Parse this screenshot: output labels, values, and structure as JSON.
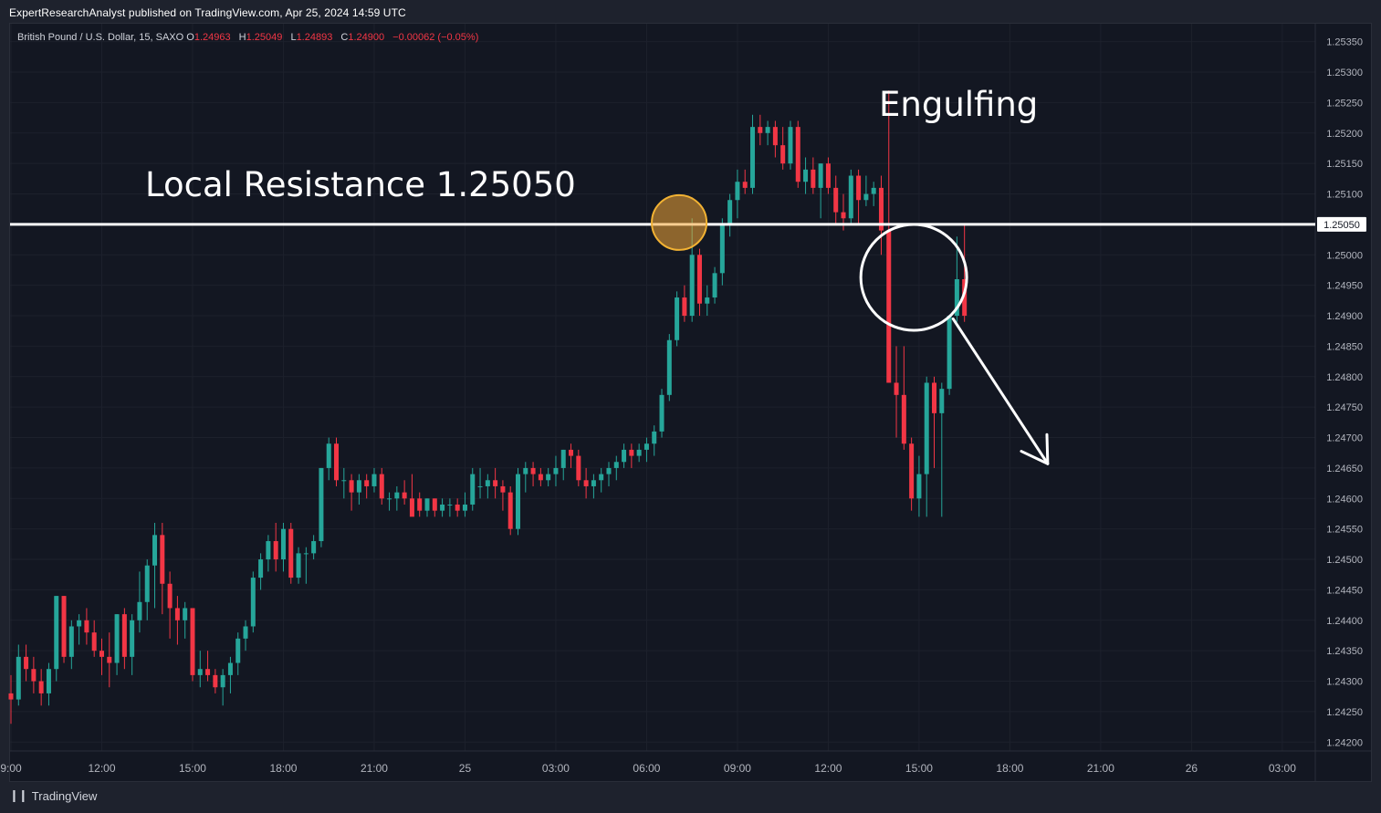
{
  "publisher_line": "ExpertResearchAnalyst published on TradingView.com, Apr 25, 2024 14:59 UTC",
  "legend": {
    "symbol": "British Pound / U.S. Dollar, 15, SAXO",
    "o_label": "O",
    "o": "1.24963",
    "h_label": "H",
    "h": "1.25049",
    "l_label": "L",
    "l": "1.24893",
    "c_label": "C",
    "c": "1.24900",
    "change": "−0.00062 (−0.05%)"
  },
  "footer": {
    "logo": "❙❙",
    "brand": "TradingView"
  },
  "colors": {
    "up": "#26a69a",
    "down": "#f23645",
    "background": "#131722",
    "grid": "#1f2330",
    "text": "#d1d4dc"
  },
  "chart_data": {
    "type": "candlestick",
    "title": "",
    "ylim": [
      1.2418,
      1.2537
    ],
    "y_ticks": [
      "1.25350",
      "1.25300",
      "1.25250",
      "1.25200",
      "1.25150",
      "1.25100",
      "1.25050",
      "1.25000",
      "1.24950",
      "1.24900",
      "1.24850",
      "1.24800",
      "1.24750",
      "1.24700",
      "1.24650",
      "1.24600",
      "1.24550",
      "1.24500",
      "1.24450",
      "1.24400",
      "1.24350",
      "1.24300",
      "1.24250",
      "1.24200"
    ],
    "x_ticks": [
      "9:00",
      "12:00",
      "15:00",
      "18:00",
      "21:00",
      "25",
      "03:00",
      "06:00",
      "09:00",
      "12:00",
      "15:00",
      "18:00",
      "21:00",
      "26",
      "03:00"
    ],
    "x_tick_bars": [
      0,
      12,
      24,
      36,
      48,
      60,
      72,
      84,
      96,
      108,
      120,
      132,
      144,
      156,
      168
    ],
    "resistance": {
      "value": 1.2505,
      "label": "1.25050"
    },
    "annotations": [
      {
        "text": "Local Resistance 1.25050"
      },
      {
        "text": "Engulfing"
      }
    ],
    "marked_circles": [
      {
        "bar": 88.3,
        "price": 1.25053,
        "style": "orange"
      },
      {
        "bar": 119.3,
        "price": 1.24963,
        "style": "white"
      }
    ],
    "arrow": {
      "from": {
        "bar": 124.5,
        "price": 1.24895
      },
      "to": {
        "bar": 137,
        "price": 1.24657
      }
    },
    "candles": [
      {
        "o": 1.2428,
        "h": 1.2431,
        "l": 1.2423,
        "c": 1.2427
      },
      {
        "o": 1.2427,
        "h": 1.2436,
        "l": 1.2426,
        "c": 1.2434
      },
      {
        "o": 1.2434,
        "h": 1.2436,
        "l": 1.243,
        "c": 1.2432
      },
      {
        "o": 1.2432,
        "h": 1.2434,
        "l": 1.2428,
        "c": 1.243
      },
      {
        "o": 1.243,
        "h": 1.2432,
        "l": 1.2426,
        "c": 1.2428
      },
      {
        "o": 1.2428,
        "h": 1.2433,
        "l": 1.2426,
        "c": 1.2432
      },
      {
        "o": 1.2432,
        "h": 1.2444,
        "l": 1.243,
        "c": 1.2444
      },
      {
        "o": 1.2444,
        "h": 1.2444,
        "l": 1.2433,
        "c": 1.2434
      },
      {
        "o": 1.2434,
        "h": 1.244,
        "l": 1.2432,
        "c": 1.2439
      },
      {
        "o": 1.2439,
        "h": 1.2441,
        "l": 1.2436,
        "c": 1.244
      },
      {
        "o": 1.244,
        "h": 1.2442,
        "l": 1.2436,
        "c": 1.2438
      },
      {
        "o": 1.2438,
        "h": 1.244,
        "l": 1.2434,
        "c": 1.2435
      },
      {
        "o": 1.2435,
        "h": 1.2437,
        "l": 1.2431,
        "c": 1.2434
      },
      {
        "o": 1.2434,
        "h": 1.2438,
        "l": 1.2429,
        "c": 1.2433
      },
      {
        "o": 1.2433,
        "h": 1.2441,
        "l": 1.2431,
        "c": 1.2441
      },
      {
        "o": 1.2441,
        "h": 1.2442,
        "l": 1.2432,
        "c": 1.2434
      },
      {
        "o": 1.2434,
        "h": 1.2441,
        "l": 1.2431,
        "c": 1.244
      },
      {
        "o": 1.244,
        "h": 1.2448,
        "l": 1.2438,
        "c": 1.2443
      },
      {
        "o": 1.2443,
        "h": 1.245,
        "l": 1.244,
        "c": 1.2449
      },
      {
        "o": 1.2449,
        "h": 1.2456,
        "l": 1.2442,
        "c": 1.2454
      },
      {
        "o": 1.2454,
        "h": 1.2456,
        "l": 1.2441,
        "c": 1.2446
      },
      {
        "o": 1.2446,
        "h": 1.2448,
        "l": 1.2437,
        "c": 1.2442
      },
      {
        "o": 1.2442,
        "h": 1.2444,
        "l": 1.2436,
        "c": 1.244
      },
      {
        "o": 1.244,
        "h": 1.2443,
        "l": 1.2437,
        "c": 1.2442
      },
      {
        "o": 1.2442,
        "h": 1.2442,
        "l": 1.243,
        "c": 1.2431
      },
      {
        "o": 1.2431,
        "h": 1.2435,
        "l": 1.2429,
        "c": 1.2432
      },
      {
        "o": 1.2432,
        "h": 1.2435,
        "l": 1.243,
        "c": 1.2431
      },
      {
        "o": 1.2431,
        "h": 1.2432,
        "l": 1.2428,
        "c": 1.2429
      },
      {
        "o": 1.2429,
        "h": 1.2432,
        "l": 1.2426,
        "c": 1.2431
      },
      {
        "o": 1.2431,
        "h": 1.2434,
        "l": 1.2428,
        "c": 1.2433
      },
      {
        "o": 1.2433,
        "h": 1.2438,
        "l": 1.2431,
        "c": 1.2437
      },
      {
        "o": 1.2437,
        "h": 1.244,
        "l": 1.2435,
        "c": 1.2439
      },
      {
        "o": 1.2439,
        "h": 1.2448,
        "l": 1.2438,
        "c": 1.2447
      },
      {
        "o": 1.2447,
        "h": 1.2451,
        "l": 1.2445,
        "c": 1.245
      },
      {
        "o": 1.245,
        "h": 1.2454,
        "l": 1.2448,
        "c": 1.2453
      },
      {
        "o": 1.2453,
        "h": 1.2456,
        "l": 1.2448,
        "c": 1.245
      },
      {
        "o": 1.245,
        "h": 1.2456,
        "l": 1.2448,
        "c": 1.2455
      },
      {
        "o": 1.2455,
        "h": 1.2456,
        "l": 1.2446,
        "c": 1.2447
      },
      {
        "o": 1.2447,
        "h": 1.2452,
        "l": 1.2446,
        "c": 1.2451
      },
      {
        "o": 1.2451,
        "h": 1.2452,
        "l": 1.2446,
        "c": 1.2451
      },
      {
        "o": 1.2451,
        "h": 1.2454,
        "l": 1.245,
        "c": 1.2453
      },
      {
        "o": 1.2453,
        "h": 1.2465,
        "l": 1.2452,
        "c": 1.2465
      },
      {
        "o": 1.2465,
        "h": 1.247,
        "l": 1.2463,
        "c": 1.2469
      },
      {
        "o": 1.2469,
        "h": 1.247,
        "l": 1.2462,
        "c": 1.2463
      },
      {
        "o": 1.2463,
        "h": 1.2465,
        "l": 1.246,
        "c": 1.2463
      },
      {
        "o": 1.2463,
        "h": 1.2464,
        "l": 1.2458,
        "c": 1.2461
      },
      {
        "o": 1.2461,
        "h": 1.2464,
        "l": 1.2459,
        "c": 1.2463
      },
      {
        "o": 1.2463,
        "h": 1.2464,
        "l": 1.246,
        "c": 1.2462
      },
      {
        "o": 1.2462,
        "h": 1.2465,
        "l": 1.2461,
        "c": 1.2464
      },
      {
        "o": 1.2464,
        "h": 1.2465,
        "l": 1.2459,
        "c": 1.246
      },
      {
        "o": 1.246,
        "h": 1.2461,
        "l": 1.2458,
        "c": 1.246
      },
      {
        "o": 1.246,
        "h": 1.2462,
        "l": 1.2458,
        "c": 1.2461
      },
      {
        "o": 1.2461,
        "h": 1.2463,
        "l": 1.2459,
        "c": 1.246
      },
      {
        "o": 1.246,
        "h": 1.2464,
        "l": 1.2458,
        "c": 1.2457
      },
      {
        "o": 1.246,
        "h": 1.2461,
        "l": 1.2457,
        "c": 1.2458
      },
      {
        "o": 1.2458,
        "h": 1.246,
        "l": 1.2457,
        "c": 1.246
      },
      {
        "o": 1.246,
        "h": 1.246,
        "l": 1.2457,
        "c": 1.2458
      },
      {
        "o": 1.2458,
        "h": 1.246,
        "l": 1.2457,
        "c": 1.2459
      },
      {
        "o": 1.2459,
        "h": 1.246,
        "l": 1.2457,
        "c": 1.2459
      },
      {
        "o": 1.2459,
        "h": 1.246,
        "l": 1.2457,
        "c": 1.2458
      },
      {
        "o": 1.2458,
        "h": 1.2461,
        "l": 1.2457,
        "c": 1.2459
      },
      {
        "o": 1.2459,
        "h": 1.2465,
        "l": 1.2458,
        "c": 1.2464
      },
      {
        "o": 1.2462,
        "h": 1.2465,
        "l": 1.246,
        "c": 1.2462
      },
      {
        "o": 1.2462,
        "h": 1.2464,
        "l": 1.246,
        "c": 1.2463
      },
      {
        "o": 1.2463,
        "h": 1.2465,
        "l": 1.246,
        "c": 1.2462
      },
      {
        "o": 1.2462,
        "h": 1.2463,
        "l": 1.2458,
        "c": 1.2461
      },
      {
        "o": 1.2461,
        "h": 1.2462,
        "l": 1.2454,
        "c": 1.2455
      },
      {
        "o": 1.2455,
        "h": 1.2465,
        "l": 1.2454,
        "c": 1.2464
      },
      {
        "o": 1.2464,
        "h": 1.2466,
        "l": 1.2461,
        "c": 1.2465
      },
      {
        "o": 1.2465,
        "h": 1.2466,
        "l": 1.2462,
        "c": 1.2464
      },
      {
        "o": 1.2464,
        "h": 1.2465,
        "l": 1.2462,
        "c": 1.2463
      },
      {
        "o": 1.2463,
        "h": 1.2465,
        "l": 1.2462,
        "c": 1.2464
      },
      {
        "o": 1.2464,
        "h": 1.2467,
        "l": 1.2462,
        "c": 1.2465
      },
      {
        "o": 1.2465,
        "h": 1.2468,
        "l": 1.2463,
        "c": 1.2468
      },
      {
        "o": 1.2468,
        "h": 1.2469,
        "l": 1.2465,
        "c": 1.2467
      },
      {
        "o": 1.2467,
        "h": 1.2468,
        "l": 1.2462,
        "c": 1.2463
      },
      {
        "o": 1.2463,
        "h": 1.2465,
        "l": 1.246,
        "c": 1.2462
      },
      {
        "o": 1.2462,
        "h": 1.2464,
        "l": 1.246,
        "c": 1.2463
      },
      {
        "o": 1.2463,
        "h": 1.2465,
        "l": 1.2461,
        "c": 1.2464
      },
      {
        "o": 1.2464,
        "h": 1.2466,
        "l": 1.2462,
        "c": 1.2465
      },
      {
        "o": 1.2465,
        "h": 1.2467,
        "l": 1.2463,
        "c": 1.2466
      },
      {
        "o": 1.2466,
        "h": 1.2469,
        "l": 1.2465,
        "c": 1.2468
      },
      {
        "o": 1.2468,
        "h": 1.2469,
        "l": 1.2465,
        "c": 1.2467
      },
      {
        "o": 1.2467,
        "h": 1.2469,
        "l": 1.2466,
        "c": 1.2468
      },
      {
        "o": 1.2468,
        "h": 1.247,
        "l": 1.2466,
        "c": 1.2469
      },
      {
        "o": 1.2469,
        "h": 1.2472,
        "l": 1.2467,
        "c": 1.2471
      },
      {
        "o": 1.2471,
        "h": 1.2478,
        "l": 1.247,
        "c": 1.2477
      },
      {
        "o": 1.2477,
        "h": 1.2487,
        "l": 1.2476,
        "c": 1.2486
      },
      {
        "o": 1.2486,
        "h": 1.2494,
        "l": 1.2485,
        "c": 1.2493
      },
      {
        "o": 1.2493,
        "h": 1.2495,
        "l": 1.2489,
        "c": 1.249
      },
      {
        "o": 1.249,
        "h": 1.2506,
        "l": 1.2489,
        "c": 1.25
      },
      {
        "o": 1.25,
        "h": 1.2501,
        "l": 1.249,
        "c": 1.2492
      },
      {
        "o": 1.2492,
        "h": 1.2495,
        "l": 1.249,
        "c": 1.2493
      },
      {
        "o": 1.2493,
        "h": 1.2498,
        "l": 1.2492,
        "c": 1.2497
      },
      {
        "o": 1.2497,
        "h": 1.2506,
        "l": 1.2495,
        "c": 1.2505
      },
      {
        "o": 1.2505,
        "h": 1.251,
        "l": 1.2503,
        "c": 1.2509
      },
      {
        "o": 1.2509,
        "h": 1.2514,
        "l": 1.2506,
        "c": 1.2512
      },
      {
        "o": 1.2512,
        "h": 1.2514,
        "l": 1.251,
        "c": 1.2511
      },
      {
        "o": 1.2511,
        "h": 1.2523,
        "l": 1.251,
        "c": 1.2521
      },
      {
        "o": 1.2521,
        "h": 1.2523,
        "l": 1.2518,
        "c": 1.252
      },
      {
        "o": 1.252,
        "h": 1.2522,
        "l": 1.2518,
        "c": 1.2521
      },
      {
        "o": 1.2521,
        "h": 1.2522,
        "l": 1.2516,
        "c": 1.2518
      },
      {
        "o": 1.2518,
        "h": 1.2521,
        "l": 1.2514,
        "c": 1.2515
      },
      {
        "o": 1.2515,
        "h": 1.2522,
        "l": 1.2514,
        "c": 1.2521
      },
      {
        "o": 1.2521,
        "h": 1.2522,
        "l": 1.2511,
        "c": 1.2512
      },
      {
        "o": 1.2512,
        "h": 1.2516,
        "l": 1.251,
        "c": 1.2514
      },
      {
        "o": 1.2514,
        "h": 1.2516,
        "l": 1.251,
        "c": 1.2511
      },
      {
        "o": 1.2511,
        "h": 1.2515,
        "l": 1.2506,
        "c": 1.2515
      },
      {
        "o": 1.2515,
        "h": 1.2516,
        "l": 1.251,
        "c": 1.2511
      },
      {
        "o": 1.2511,
        "h": 1.2513,
        "l": 1.2505,
        "c": 1.2507
      },
      {
        "o": 1.2507,
        "h": 1.251,
        "l": 1.2504,
        "c": 1.2506
      },
      {
        "o": 1.2506,
        "h": 1.2514,
        "l": 1.2505,
        "c": 1.2513
      },
      {
        "o": 1.2513,
        "h": 1.2514,
        "l": 1.2505,
        "c": 1.2509
      },
      {
        "o": 1.2509,
        "h": 1.2513,
        "l": 1.2508,
        "c": 1.251
      },
      {
        "o": 1.251,
        "h": 1.2512,
        "l": 1.2508,
        "c": 1.2511
      },
      {
        "o": 1.2511,
        "h": 1.2513,
        "l": 1.25,
        "c": 1.2504
      },
      {
        "o": 1.2504,
        "h": 1.2527,
        "l": 1.2479,
        "c": 1.2479
      },
      {
        "o": 1.2479,
        "h": 1.2485,
        "l": 1.247,
        "c": 1.2477
      },
      {
        "o": 1.2477,
        "h": 1.2485,
        "l": 1.2468,
        "c": 1.2469
      },
      {
        "o": 1.2469,
        "h": 1.247,
        "l": 1.2458,
        "c": 1.246
      },
      {
        "o": 1.246,
        "h": 1.2467,
        "l": 1.2457,
        "c": 1.2464
      },
      {
        "o": 1.2464,
        "h": 1.248,
        "l": 1.2457,
        "c": 1.2479
      },
      {
        "o": 1.2479,
        "h": 1.248,
        "l": 1.2465,
        "c": 1.2474
      },
      {
        "o": 1.2474,
        "h": 1.2479,
        "l": 1.2457,
        "c": 1.2478
      },
      {
        "o": 1.2478,
        "h": 1.249,
        "l": 1.2477,
        "c": 1.249
      },
      {
        "o": 1.249,
        "h": 1.2503,
        "l": 1.2489,
        "c": 1.2496
      },
      {
        "o": 1.2496,
        "h": 1.2505,
        "l": 1.2489,
        "c": 1.249
      }
    ]
  }
}
